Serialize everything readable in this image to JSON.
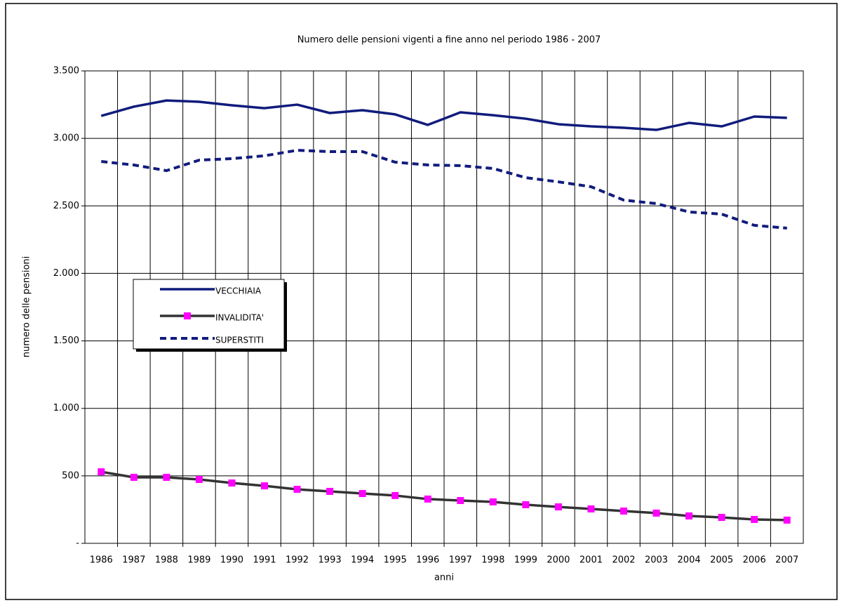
{
  "chart_data": {
    "type": "line",
    "title": "Numero delle pensioni vigenti a fine anno nel periodo 1986 - 2007",
    "x_label": "anni",
    "y_label": "numero delle pensioni",
    "categories": [
      "1986",
      "1987",
      "1988",
      "1989",
      "1990",
      "1991",
      "1992",
      "1993",
      "1994",
      "1995",
      "1996",
      "1997",
      "1998",
      "1999",
      "2000",
      "2001",
      "2002",
      "2003",
      "2004",
      "2005",
      "2006",
      "2007"
    ],
    "series": [
      {
        "name": "VECCHIAIA",
        "color": "#111c7c",
        "dash": false,
        "values": [
          3167,
          3235,
          3281,
          3271,
          3245,
          3224,
          3250,
          3188,
          3209,
          3178,
          3100,
          3193,
          3172,
          3146,
          3105,
          3089,
          3079,
          3063,
          3115,
          3089,
          3162,
          3152
        ]
      },
      {
        "name": "INVALIDITA'",
        "color": "#333333",
        "dash": false,
        "marker": "square",
        "marker_color": "#ff00ff",
        "values": [
          530,
          489,
          489,
          473,
          447,
          426,
          400,
          385,
          369,
          354,
          328,
          317,
          307,
          286,
          270,
          255,
          239,
          224,
          203,
          192,
          177,
          172
        ]
      },
      {
        "name": "SUPERSTITI",
        "color": "#111c7c",
        "dash": true,
        "values": [
          2829,
          2803,
          2761,
          2839,
          2850,
          2871,
          2912,
          2902,
          2902,
          2824,
          2803,
          2798,
          2777,
          2709,
          2678,
          2642,
          2543,
          2517,
          2455,
          2439,
          2356,
          2335
        ]
      }
    ],
    "ylim": [
      0,
      3500
    ],
    "yticks": [
      {
        "value": 0,
        "label": "-"
      },
      500,
      {
        "value": 1000,
        "label": "1.000"
      },
      {
        "value": 1500,
        "label": "1.500"
      },
      {
        "value": 2000,
        "label": "2.000"
      },
      {
        "value": 2500,
        "label": "2.500"
      },
      {
        "value": 3000,
        "label": "3.000"
      },
      {
        "value": 3500,
        "label": "3.500"
      }
    ],
    "grid": true
  }
}
